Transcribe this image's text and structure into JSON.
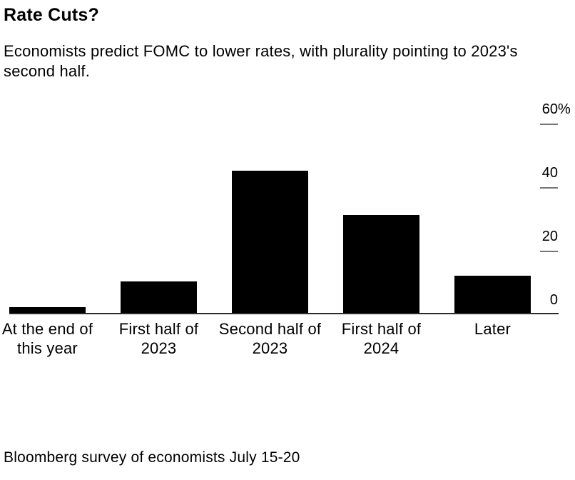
{
  "header": {
    "title": "Rate Cuts?",
    "subtitle": "Economists predict FOMC to lower rates, with plurality pointing to 2023's second half."
  },
  "chart_data": {
    "type": "bar",
    "title": "Rate Cuts?",
    "subtitle": "Economists predict FOMC to lower rates, with plurality pointing to 2023's second half.",
    "categories": [
      "At the end of\nthis year",
      "First half of\n2023",
      "Second half of\n2023",
      "First half of\n2024",
      "Later"
    ],
    "values": [
      2,
      10,
      45,
      31,
      12
    ],
    "unit": "percent",
    "xlabel": "",
    "ylabel": "",
    "ylim": [
      0,
      60
    ],
    "y_axis_side": "right",
    "grid": "off",
    "legend": "none",
    "y_ticks": [
      {
        "value": 60,
        "label": "60",
        "suffix": "%",
        "tick_line": true
      },
      {
        "value": 40,
        "label": "40",
        "suffix": "",
        "tick_line": true
      },
      {
        "value": 20,
        "label": "20",
        "suffix": "",
        "tick_line": true
      },
      {
        "value": 0,
        "label": "0",
        "suffix": "",
        "tick_line": false
      }
    ],
    "colors": {
      "bar": "#000000",
      "axis_line": "#2a2a2a",
      "tick_line": "#767676",
      "text": "#000000",
      "background": "#ffffff"
    }
  },
  "footer": {
    "source": "Bloomberg survey of economists July 15-20"
  }
}
